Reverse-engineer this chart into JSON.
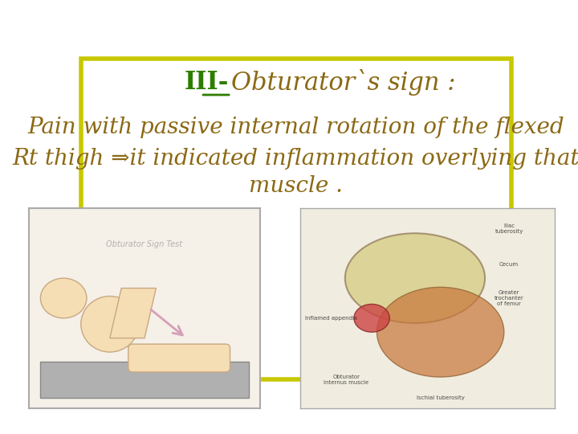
{
  "background_color": "#ffffff",
  "border_color": "#c8c800",
  "border_linewidth": 4,
  "title_III_text": "III-",
  "title_III_color": "#2e7d00",
  "title_rest_text": "Obturator`s sign : ",
  "title_rest_color": "#8B6914",
  "title_fontsize": 22,
  "title_style": "italic",
  "line1_text": "Pain with passive internal rotation of the flexed",
  "line2_text": "Rt thigh ⇒it indicated inflammation overlying that",
  "line3_text": "muscle .",
  "body_color": "#8B6914",
  "body_fontsize": 20,
  "body_style": "italic",
  "figsize": [
    7.2,
    5.4
  ],
  "dpi": 100
}
